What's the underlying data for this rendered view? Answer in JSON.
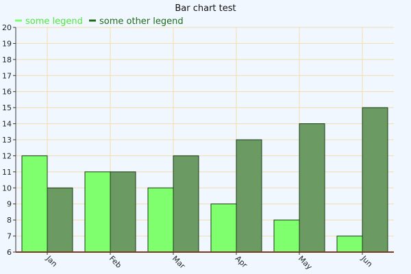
{
  "chart_data": {
    "type": "bar",
    "title": "Bar chart test",
    "xlabel": "",
    "ylabel": "",
    "categories": [
      "Jan",
      "Feb",
      "Mar",
      "Apr",
      "May",
      "Jun"
    ],
    "series": [
      {
        "name": "some legend",
        "values": [
          12,
          11,
          10,
          9,
          8,
          7
        ],
        "color": "#80ff6e"
      },
      {
        "name": "some other legend",
        "values": [
          10,
          11,
          12,
          13,
          14,
          15
        ],
        "color": "#6b9b63"
      }
    ],
    "ylim": [
      6,
      20
    ],
    "yticks": [
      "6",
      "7",
      "8",
      "9",
      "10",
      "11",
      "12",
      "13",
      "14",
      "15",
      "16",
      "17",
      "18",
      "19",
      "20"
    ],
    "grid": true,
    "legend_position": "top-left",
    "colors": {
      "background": "#f0f7ff",
      "grid": "#f3dcab",
      "axis": "#7a3a1c",
      "legend_text_1": "#4fe83c",
      "legend_text_2": "#1f6b1a"
    }
  }
}
